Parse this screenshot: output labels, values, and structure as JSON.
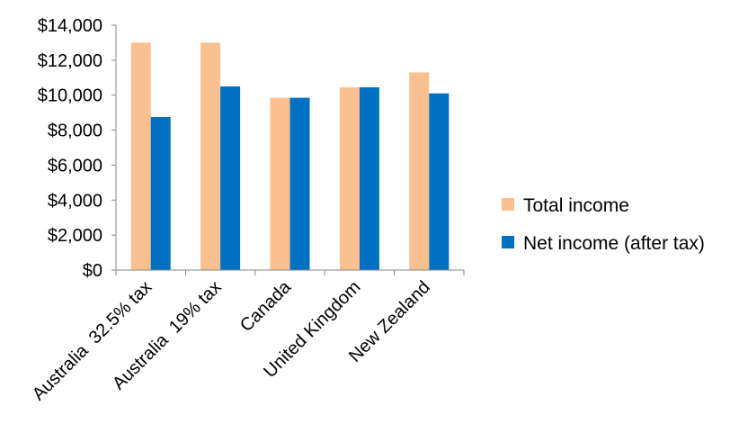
{
  "chart_data": {
    "type": "bar",
    "title": "",
    "xlabel": "",
    "ylabel": "",
    "ylim": [
      0,
      14000
    ],
    "y_tick_step": 2000,
    "y_tick_format": "currency",
    "y_ticks": [
      "$0",
      "$2,000",
      "$4,000",
      "$6,000",
      "$8,000",
      "$10,000",
      "$12,000",
      "$14,000"
    ],
    "categories": [
      "Australia  32.5% tax",
      "Australia  19% tax",
      "Canada",
      "United Kingdom",
      "New Zealand"
    ],
    "series": [
      {
        "name": "Total income",
        "color": "#FAC090",
        "values": [
          13000,
          13000,
          9850,
          10450,
          11300
        ]
      },
      {
        "name": "Net income (after tax)",
        "color": "#0070C0",
        "values": [
          8750,
          10500,
          9850,
          10450,
          10100
        ]
      }
    ],
    "grid": false,
    "legend_position": "right"
  }
}
